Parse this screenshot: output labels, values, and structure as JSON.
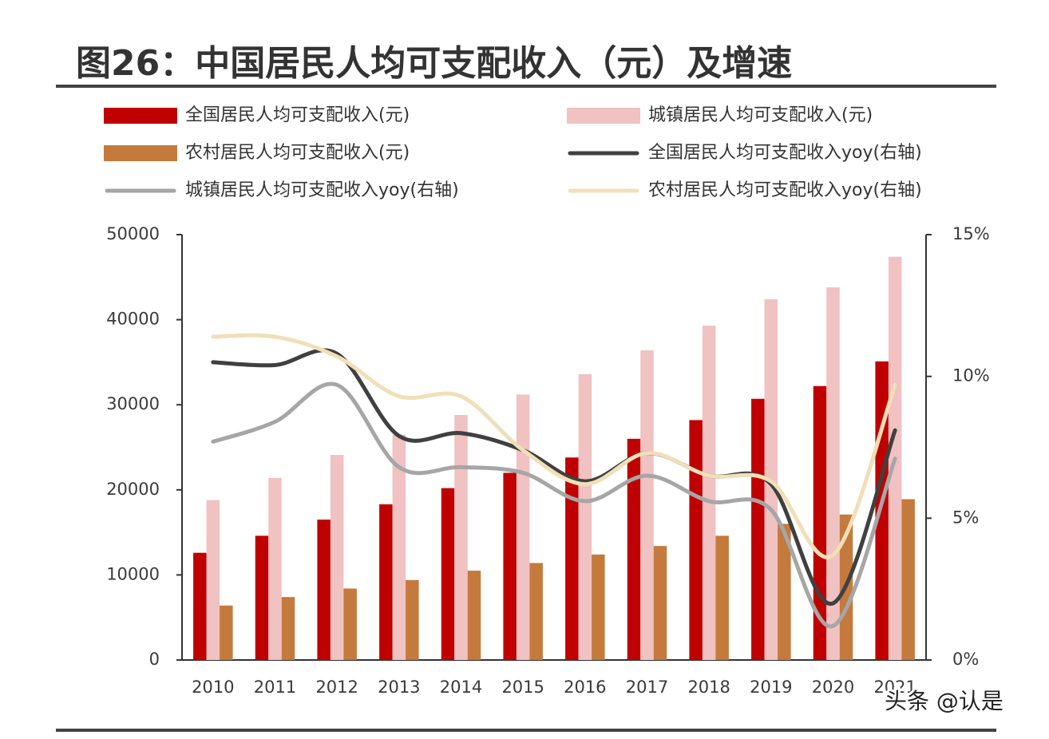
{
  "chart_data": {
    "type": "bar",
    "title": "图26：中国居民人均可支配收入（元）及增速",
    "watermark": "头条 @认是",
    "categories": [
      "2010",
      "2011",
      "2012",
      "2013",
      "2014",
      "2015",
      "2016",
      "2017",
      "2018",
      "2019",
      "2020",
      "2021"
    ],
    "ylim": [
      0,
      50000
    ],
    "yticks": [
      0,
      10000,
      20000,
      30000,
      40000,
      50000
    ],
    "y2lim": [
      0,
      15
    ],
    "y2ticks": [
      {
        "value": 0,
        "label": "0%"
      },
      {
        "value": 5,
        "label": "5%"
      },
      {
        "value": 10,
        "label": "10%"
      },
      {
        "value": 15,
        "label": "15%"
      }
    ],
    "series": [
      {
        "name": "全国居民人均可支配收入(元)",
        "type": "bar",
        "color": "#c00000",
        "values": [
          12600,
          14600,
          16500,
          18300,
          20200,
          22000,
          23800,
          26000,
          28200,
          30700,
          32200,
          35100
        ]
      },
      {
        "name": "城镇居民人均可支配收入(元)",
        "type": "bar",
        "color": "#f0c2c2",
        "values": [
          18800,
          21400,
          24100,
          26500,
          28800,
          31200,
          33600,
          36400,
          39300,
          42400,
          43800,
          47400
        ]
      },
      {
        "name": "农村居民人均可支配收入(元)",
        "type": "bar",
        "color": "#c47a3c",
        "values": [
          6400,
          7400,
          8400,
          9400,
          10500,
          11400,
          12400,
          13400,
          14600,
          16000,
          17100,
          18900
        ]
      },
      {
        "name": "全国居民人均可支配收入yoy(右轴)",
        "type": "line",
        "axis": "y2",
        "color": "#404040",
        "values": [
          10.5,
          10.4,
          10.8,
          7.9,
          8.0,
          7.4,
          6.3,
          7.3,
          6.5,
          6.2,
          2.0,
          8.1
        ]
      },
      {
        "name": "城镇居民人均可支配收入yoy(右轴)",
        "type": "line",
        "axis": "y2",
        "color": "#a6a6a6",
        "values": [
          7.7,
          8.4,
          9.7,
          6.8,
          6.8,
          6.6,
          5.6,
          6.5,
          5.6,
          5.3,
          1.2,
          7.1
        ]
      },
      {
        "name": "农村居民人均可支配收入yoy(右轴)",
        "type": "line",
        "axis": "y2",
        "color": "#f1dfb8",
        "values": [
          11.4,
          11.4,
          10.7,
          9.3,
          9.3,
          7.4,
          6.2,
          7.3,
          6.5,
          6.3,
          3.7,
          9.7
        ]
      }
    ]
  }
}
